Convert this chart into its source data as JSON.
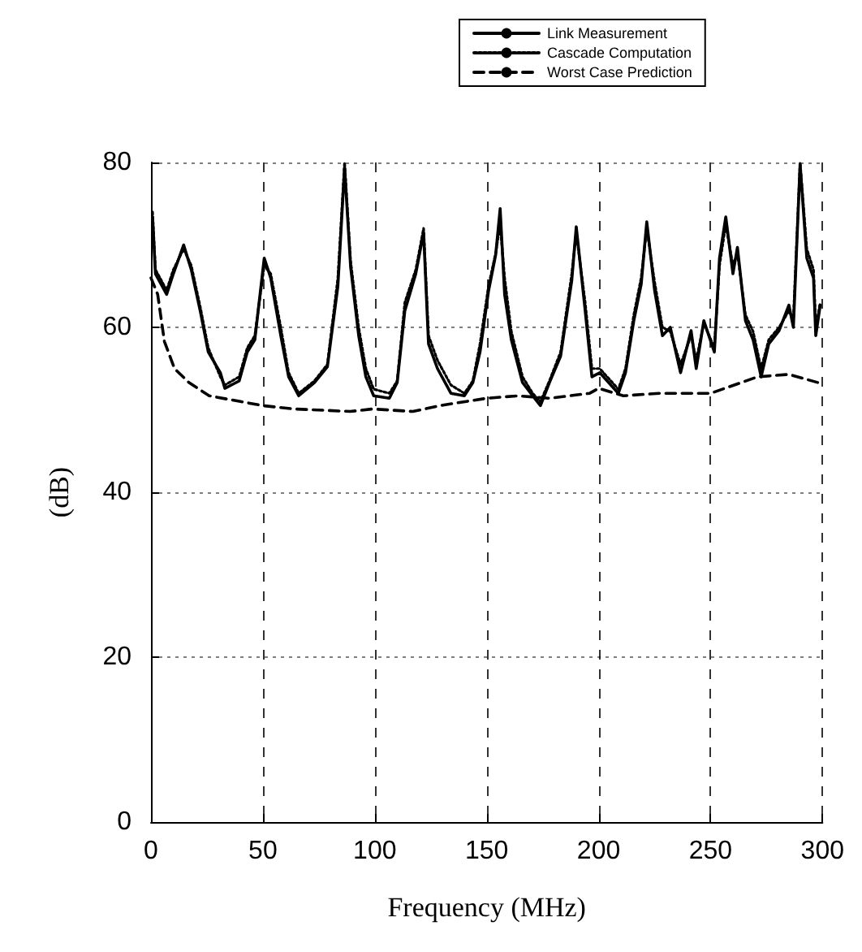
{
  "chart_data": {
    "type": "line",
    "xlabel": "Frequency (MHz)",
    "ylabel": "(dB)",
    "xlim": [
      0,
      300
    ],
    "xticks": [
      0,
      50,
      100,
      150,
      200,
      250,
      300
    ],
    "ylim": [
      0,
      80
    ],
    "yticks": [
      0,
      20,
      40,
      60,
      80
    ],
    "grid": true,
    "legend": "top",
    "marker": "none",
    "series": [
      {
        "name": "Link Measurement",
        "color": "#000000",
        "line_style": "solid",
        "x": [
          0.7,
          2,
          7,
          10,
          14.6,
          18,
          22,
          25.6,
          31,
          33,
          39.4,
          43,
          46.4,
          50.6,
          53.5,
          58,
          61.5,
          66,
          73,
          78.8,
          83.5,
          86.5,
          89.2,
          92.8,
          96,
          99.5,
          106.5,
          110,
          113.4,
          118.3,
          121.8,
          124,
          128,
          134,
          140,
          143.8,
          147,
          150.8,
          154,
          156,
          158,
          161,
          166,
          170.5,
          174,
          178,
          183,
          188,
          190,
          194,
          197,
          200.5,
          208.8,
          212,
          215.7,
          219,
          221.5,
          225,
          228.5,
          232,
          236.6,
          241.3,
          243.6,
          247,
          251.7,
          254,
          256.8,
          260,
          262,
          265.6,
          269,
          272.6,
          276,
          280.6,
          285,
          287,
          290,
          293,
          296,
          297,
          299
        ],
        "values": [
          73.4,
          66.5,
          64,
          66.5,
          70,
          67,
          62,
          57,
          54.5,
          52.6,
          53.5,
          57,
          58.5,
          68.4,
          66,
          59,
          54,
          51.7,
          53.3,
          55.2,
          65,
          79.4,
          67.3,
          59,
          54,
          51.7,
          51.4,
          53.3,
          62,
          66.5,
          71.5,
          58,
          55,
          52,
          51.7,
          53.3,
          57,
          64.4,
          68.8,
          74.4,
          64,
          58.5,
          53.3,
          51.7,
          50.5,
          53.3,
          56.5,
          65.7,
          72.2,
          62,
          54,
          54.5,
          52,
          54.5,
          60.8,
          65.2,
          72.8,
          64.5,
          59,
          60,
          54.5,
          59.6,
          55,
          60.8,
          57,
          68.4,
          73.4,
          66.5,
          69.7,
          60.8,
          58.5,
          54,
          58,
          59.6,
          62.7,
          60,
          79.8,
          68.4,
          66,
          59,
          62.7
        ]
      },
      {
        "name": "Cascade Computation",
        "color": "#000000",
        "line_style": "dotted",
        "x": [
          0.7,
          2,
          7,
          10,
          14.6,
          18,
          22,
          25.6,
          31,
          33,
          39.4,
          43,
          46.4,
          50.6,
          53.5,
          58,
          61.5,
          66,
          73,
          78.8,
          83.5,
          86.5,
          89.2,
          92.8,
          96,
          99.5,
          106.5,
          110,
          113.4,
          118.3,
          121.8,
          124,
          128,
          134,
          140,
          143.8,
          147,
          150.8,
          154,
          156,
          158,
          161,
          166,
          170.5,
          174,
          178,
          183,
          188,
          190,
          194,
          197,
          200.5,
          208.8,
          212,
          215.7,
          219,
          221.5,
          225,
          228.5,
          232,
          236.6,
          241.3,
          243.6,
          247,
          251.7,
          254,
          256.8,
          260,
          262,
          265.6,
          269,
          272.6,
          276,
          280.6,
          285,
          287,
          290,
          293,
          296,
          297,
          299
        ],
        "values": [
          74,
          67,
          64.5,
          67,
          69.5,
          67.5,
          62.5,
          57.5,
          54,
          53,
          54,
          57.5,
          59,
          67.5,
          66.5,
          60,
          54.5,
          52,
          53.5,
          55.5,
          66,
          80,
          68,
          60,
          55,
          52.5,
          52,
          53.5,
          63,
          67,
          72,
          59,
          56,
          53,
          52,
          53.5,
          58,
          65,
          69,
          72.5,
          66,
          59.5,
          54,
          52,
          51,
          53.5,
          57,
          66.5,
          71.5,
          63,
          55,
          55,
          52.5,
          55,
          61.5,
          66,
          72,
          65.5,
          60,
          59.5,
          55.5,
          59,
          56,
          60.5,
          57.5,
          67.5,
          72.5,
          67.5,
          69,
          61.5,
          59.5,
          55,
          58.5,
          60,
          62,
          61,
          80,
          69.5,
          67,
          60,
          63
        ]
      },
      {
        "name": "Worst Case Prediction",
        "color": "#000000",
        "line_style": "dashed",
        "x": [
          0,
          3,
          6,
          10.5,
          17,
          26,
          40,
          50,
          64,
          89,
          99,
          117,
          131,
          150,
          164,
          178,
          196,
          200,
          211,
          227,
          250,
          271,
          285,
          298
        ],
        "values": [
          66,
          64,
          58.3,
          55,
          53.3,
          51.7,
          51,
          50.5,
          50.1,
          49.8,
          50.1,
          49.8,
          50.6,
          51.4,
          51.7,
          51.4,
          52,
          52.6,
          51.7,
          52,
          52,
          54,
          54.3,
          53.3
        ]
      }
    ]
  }
}
